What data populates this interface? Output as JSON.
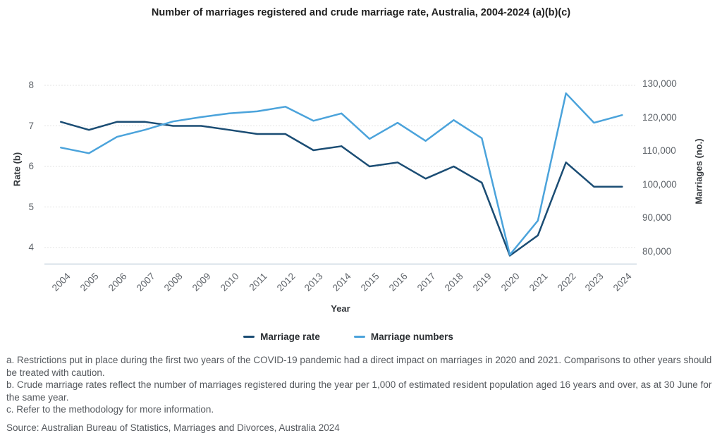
{
  "title": "Number of marriages registered and crude marriage rate, Australia, 2004-2024 (a)(b)(c)",
  "chart_data": {
    "type": "line",
    "x": [
      "2004",
      "2005",
      "2006",
      "2007",
      "2008",
      "2009",
      "2010",
      "2011",
      "2012",
      "2013",
      "2014",
      "2015",
      "2016",
      "2017",
      "2018",
      "2019",
      "2020",
      "2021",
      "2022",
      "2023",
      "2024"
    ],
    "series": [
      {
        "name": "Marriage rate",
        "axis": "left",
        "color": "#1b4d74",
        "values": [
          7.1,
          6.9,
          7.1,
          7.1,
          7.0,
          7.0,
          6.9,
          6.8,
          6.8,
          6.4,
          6.5,
          6.0,
          6.1,
          5.7,
          6.0,
          5.6,
          3.8,
          4.3,
          6.1,
          5.5,
          5.5
        ]
      },
      {
        "name": "Marriage numbers",
        "axis": "right",
        "color": "#4ba3db",
        "values": [
          111000,
          109300,
          114200,
          116300,
          118800,
          120100,
          121200,
          121800,
          123200,
          119000,
          121200,
          113600,
          118400,
          113000,
          119200,
          113800,
          79000,
          89200,
          127200,
          118400,
          120700
        ]
      }
    ],
    "left_axis": {
      "label": "Rate (b)",
      "ticks": [
        8,
        7,
        6,
        5,
        4
      ],
      "min": 4,
      "max": 8
    },
    "right_axis": {
      "label": "Marriages (no.)",
      "ticks": [
        "130,000",
        "120,000",
        "110,000",
        "100,000",
        "90,000",
        "80,000"
      ],
      "tick_values": [
        130000,
        120000,
        110000,
        100000,
        90000,
        80000
      ],
      "min": 80000,
      "max": 130000
    },
    "xlabel": "Year",
    "grid": "horizontal-dotted",
    "legend_position": "bottom"
  },
  "legend": {
    "items": [
      {
        "label": "Marriage rate",
        "color": "#1b4d74"
      },
      {
        "label": "Marriage numbers",
        "color": "#4ba3db"
      }
    ]
  },
  "footnotes": [
    "a. Restrictions put in place during the first two years of the COVID-19 pandemic had a direct impact on marriages in 2020 and 2021. Comparisons to other years should be treated with caution.",
    "b. Crude marriage rates reflect the number of marriages registered during the year per 1,000 of estimated resident population aged 16 years and over, as at 30 June for the same year.",
    "c. Refer to the methodology for more information."
  ],
  "source": "Source: Australian Bureau of Statistics, Marriages and Divorces, Australia 2024",
  "colors": {
    "grid": "#e3e3e3",
    "axis_line": "#d9e1ea",
    "tick_text": "#5f646a",
    "title_text": "#1f1f1f",
    "footnote_text": "#55595e"
  }
}
